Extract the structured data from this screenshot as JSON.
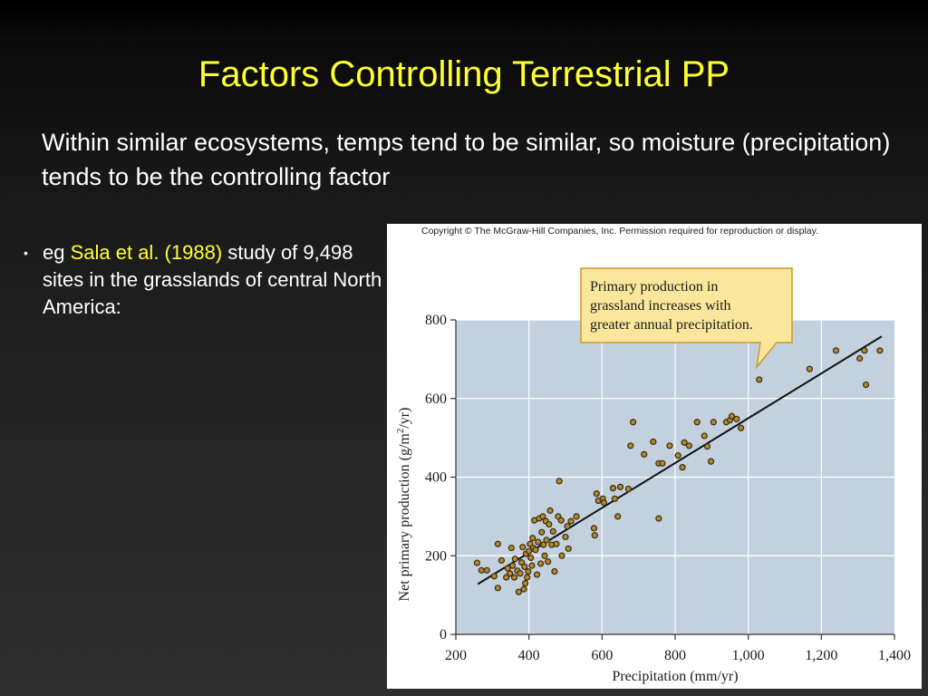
{
  "slide": {
    "title": "Factors Controlling Terrestrial PP",
    "intro": "Within similar ecosystems, temps tend to be similar, so moisture (precipitation) tends to be the controlling factor",
    "bullet": {
      "marker": "•",
      "prefix": "eg ",
      "highlight": "Sala et al. (1988)",
      "suffix": " study of 9,498 sites in the grasslands of central North America:"
    }
  },
  "figure": {
    "copyright": "Copyright © The McGraw-Hill Companies, Inc. Permission required for reproduction or display.",
    "callout": {
      "lines": [
        "Primary production in",
        "grassland increases with",
        "greater annual precipitation."
      ]
    },
    "colors": {
      "plot_bg": "#c3d1df",
      "grid": "#ffffff",
      "callout_bg": "#fbe79c",
      "callout_border": "#c99a2a",
      "point_fill": "#b08a2c",
      "point_edge": "#3a2a12"
    }
  },
  "chart_data": {
    "type": "scatter",
    "xlabel": "Precipitation (mm/yr)",
    "ylabel_main": "Net primary production (g/m",
    "ylabel_sup": "2",
    "ylabel_end": "/yr)",
    "xlim": [
      200,
      1400
    ],
    "ylim": [
      0,
      800
    ],
    "x_ticks": [
      200,
      400,
      600,
      800,
      1000,
      1200,
      1400
    ],
    "x_tick_labels": [
      "200",
      "400",
      "600",
      "800",
      "1,000",
      "1,200",
      "1,400"
    ],
    "y_ticks": [
      0,
      200,
      400,
      600,
      800
    ],
    "y_tick_labels": [
      "0",
      "200",
      "400",
      "600",
      "800"
    ],
    "grid": true,
    "trend_line": {
      "x": [
        260,
        1365
      ],
      "y": [
        128,
        758
      ]
    },
    "points": [
      [
        258,
        182
      ],
      [
        270,
        163
      ],
      [
        285,
        163
      ],
      [
        305,
        148
      ],
      [
        315,
        230
      ],
      [
        315,
        118
      ],
      [
        325,
        188
      ],
      [
        338,
        145
      ],
      [
        342,
        168
      ],
      [
        348,
        155
      ],
      [
        352,
        220
      ],
      [
        355,
        175
      ],
      [
        360,
        145
      ],
      [
        362,
        192
      ],
      [
        368,
        162
      ],
      [
        372,
        108
      ],
      [
        376,
        155
      ],
      [
        380,
        183
      ],
      [
        383,
        222
      ],
      [
        386,
        115
      ],
      [
        388,
        172
      ],
      [
        390,
        130
      ],
      [
        392,
        205
      ],
      [
        395,
        145
      ],
      [
        398,
        160
      ],
      [
        400,
        212
      ],
      [
        403,
        230
      ],
      [
        405,
        195
      ],
      [
        408,
        175
      ],
      [
        410,
        245
      ],
      [
        412,
        220
      ],
      [
        415,
        290
      ],
      [
        418,
        215
      ],
      [
        422,
        152
      ],
      [
        425,
        235
      ],
      [
        428,
        295
      ],
      [
        432,
        180
      ],
      [
        435,
        260
      ],
      [
        438,
        300
      ],
      [
        440,
        228
      ],
      [
        443,
        200
      ],
      [
        446,
        288
      ],
      [
        448,
        240
      ],
      [
        452,
        185
      ],
      [
        455,
        280
      ],
      [
        458,
        315
      ],
      [
        462,
        228
      ],
      [
        466,
        262
      ],
      [
        470,
        160
      ],
      [
        475,
        230
      ],
      [
        480,
        300
      ],
      [
        483,
        390
      ],
      [
        488,
        290
      ],
      [
        490,
        200
      ],
      [
        500,
        248
      ],
      [
        505,
        275
      ],
      [
        508,
        218
      ],
      [
        515,
        288
      ],
      [
        530,
        300
      ],
      [
        578,
        270
      ],
      [
        580,
        252
      ],
      [
        585,
        358
      ],
      [
        590,
        340
      ],
      [
        602,
        345
      ],
      [
        605,
        335
      ],
      [
        630,
        372
      ],
      [
        635,
        345
      ],
      [
        643,
        300
      ],
      [
        650,
        375
      ],
      [
        672,
        370
      ],
      [
        678,
        480
      ],
      [
        685,
        540
      ],
      [
        715,
        458
      ],
      [
        740,
        490
      ],
      [
        755,
        295
      ],
      [
        755,
        435
      ],
      [
        765,
        435
      ],
      [
        785,
        480
      ],
      [
        808,
        455
      ],
      [
        820,
        425
      ],
      [
        825,
        488
      ],
      [
        838,
        480
      ],
      [
        860,
        540
      ],
      [
        880,
        505
      ],
      [
        888,
        478
      ],
      [
        898,
        440
      ],
      [
        905,
        540
      ],
      [
        940,
        540
      ],
      [
        950,
        545
      ],
      [
        955,
        555
      ],
      [
        968,
        548
      ],
      [
        980,
        525
      ],
      [
        1030,
        648
      ],
      [
        1168,
        675
      ],
      [
        1240,
        722
      ],
      [
        1305,
        702
      ],
      [
        1318,
        722
      ],
      [
        1322,
        635
      ],
      [
        1360,
        722
      ]
    ]
  }
}
